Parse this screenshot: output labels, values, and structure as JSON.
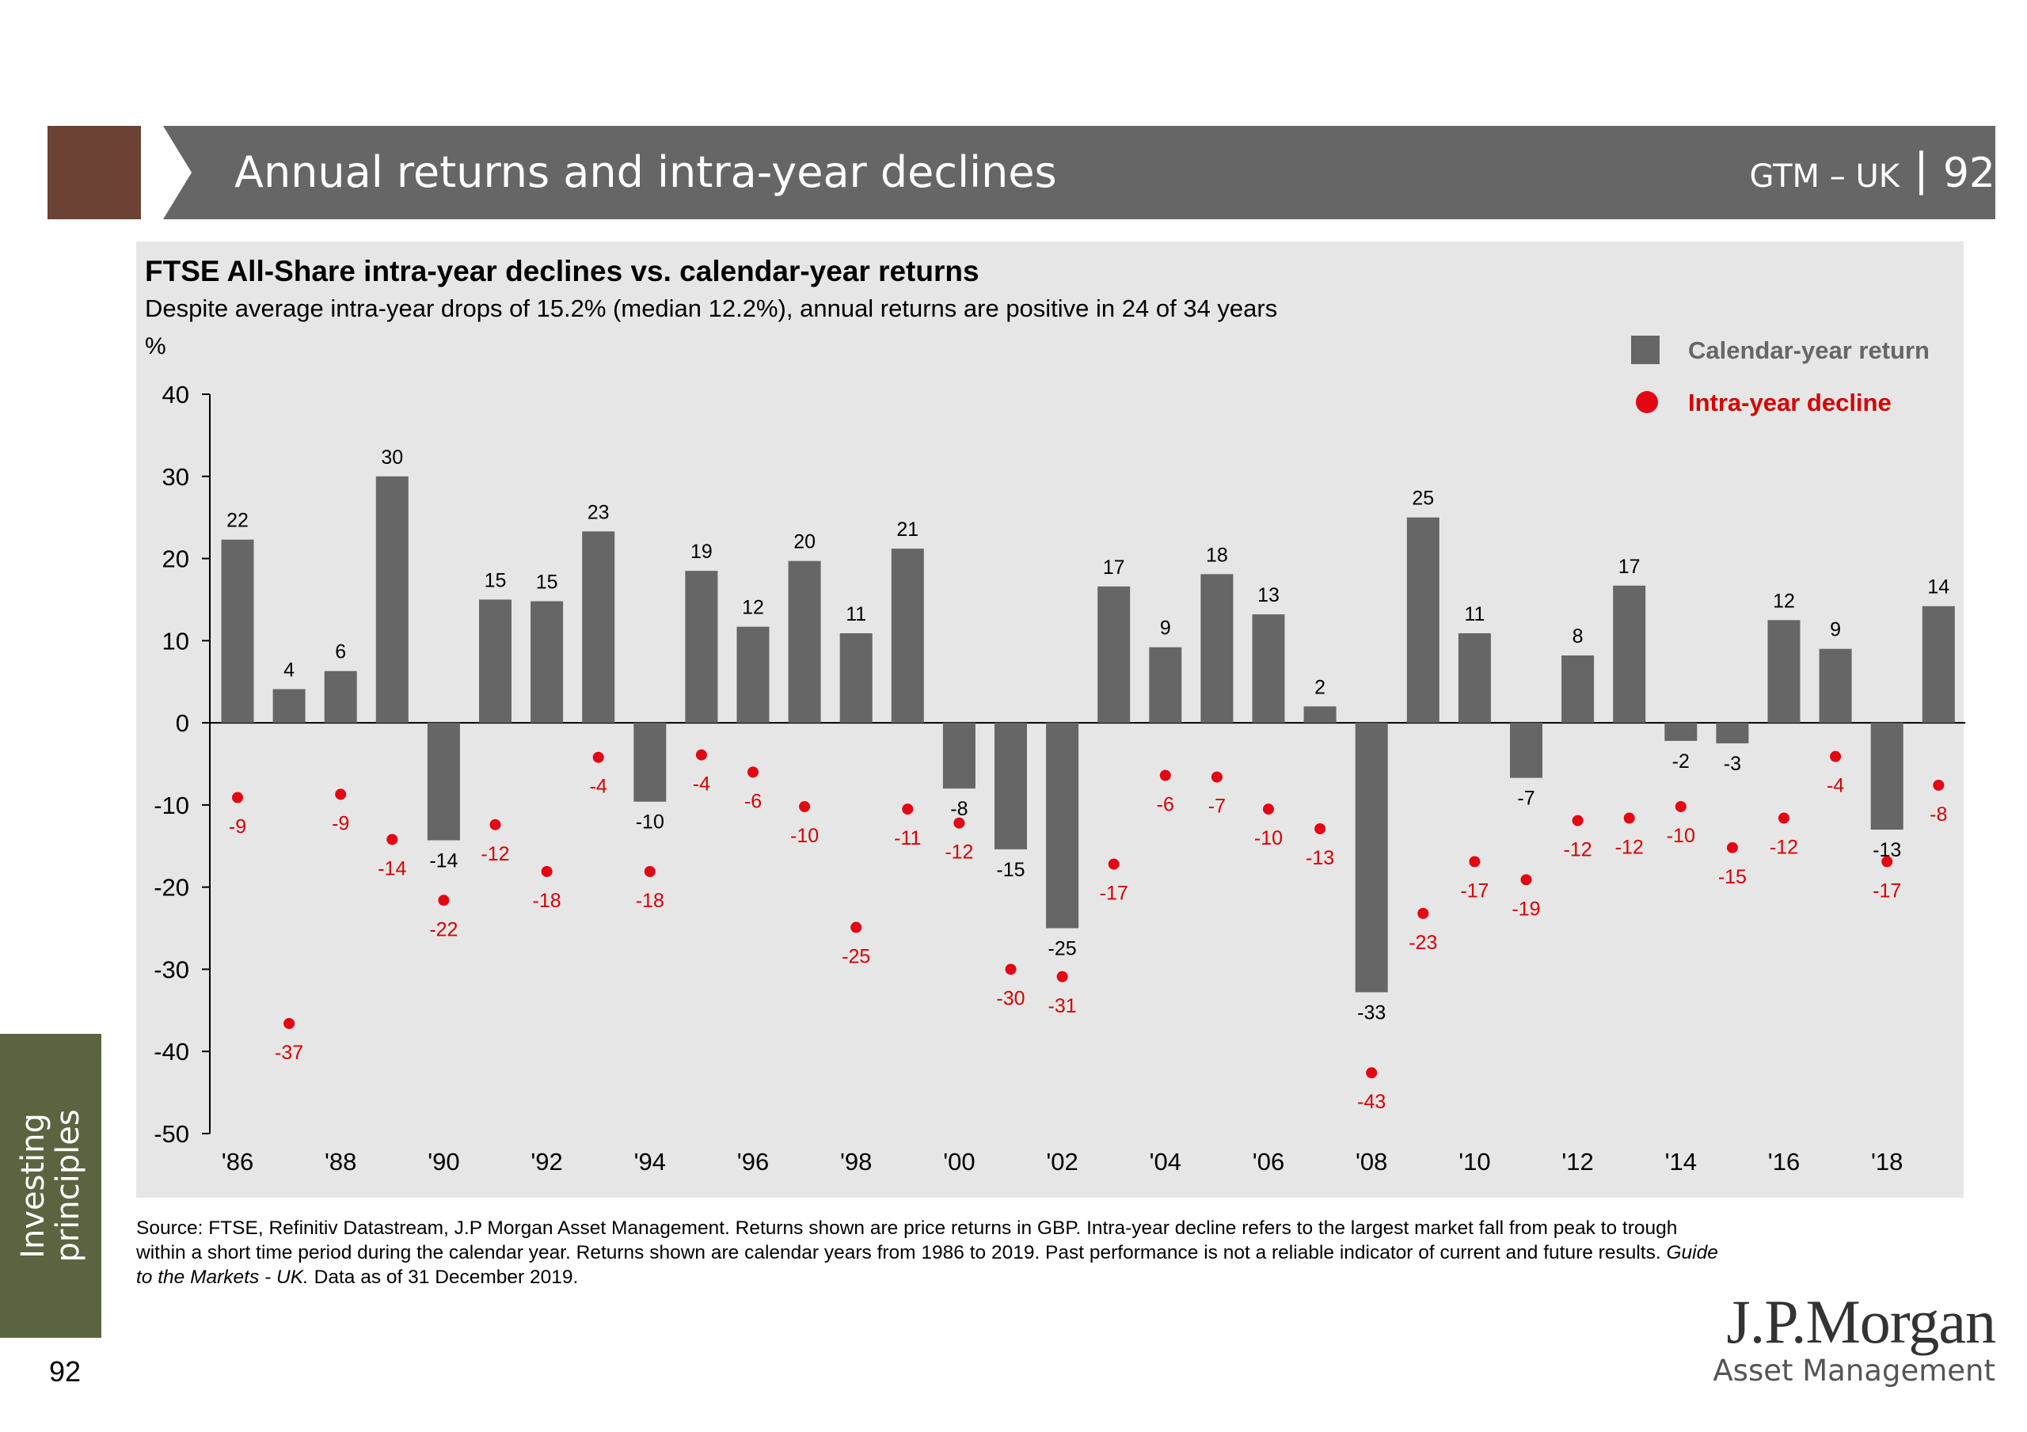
{
  "header": {
    "title": "Annual returns and intra-year declines",
    "deck_code": "GTM – UK",
    "page": "92"
  },
  "chart_data": {
    "type": "bar",
    "title": "FTSE All-Share intra-year declines vs. calendar-year returns",
    "subtitle": "Despite average intra-year drops of 15.2% (median 12.2%), annual returns are positive in 24 of 34 years",
    "unit_label": "%",
    "ylim": [
      -50,
      40
    ],
    "yticks": [
      40,
      30,
      20,
      10,
      0,
      -10,
      -20,
      -30,
      -40,
      -50
    ],
    "years": [
      1986,
      1987,
      1988,
      1989,
      1990,
      1991,
      1992,
      1993,
      1994,
      1995,
      1996,
      1997,
      1998,
      1999,
      2000,
      2001,
      2002,
      2003,
      2004,
      2005,
      2006,
      2007,
      2008,
      2009,
      2010,
      2011,
      2012,
      2013,
      2014,
      2015,
      2016,
      2017,
      2018,
      2019
    ],
    "x_tick_labels": [
      "'86",
      "'88",
      "'90",
      "'92",
      "'94",
      "'96",
      "'98",
      "'00",
      "'02",
      "'04",
      "'06",
      "'08",
      "'10",
      "'12",
      "'14",
      "'16",
      "'18"
    ],
    "legend_position": "top-right",
    "series": [
      {
        "name": "Calendar-year return",
        "kind": "bar",
        "color": "#666666",
        "values": [
          22,
          4,
          6,
          30,
          -14,
          15,
          15,
          23,
          -10,
          19,
          12,
          20,
          11,
          21,
          -8,
          -15,
          -25,
          17,
          9,
          18,
          13,
          2,
          -33,
          25,
          11,
          -7,
          8,
          17,
          -2,
          -3,
          12,
          9,
          -13,
          14
        ],
        "plotted": [
          22.3,
          4.1,
          6.3,
          30.0,
          -14.3,
          15.0,
          14.8,
          23.3,
          -9.6,
          18.5,
          11.7,
          19.7,
          10.9,
          21.2,
          -8.0,
          -15.4,
          -25.0,
          16.6,
          9.2,
          18.1,
          13.2,
          2.0,
          -32.8,
          25.0,
          10.9,
          -6.7,
          8.2,
          16.7,
          -2.2,
          -2.5,
          12.5,
          9.0,
          -13.0,
          14.2
        ]
      },
      {
        "name": "Intra-year decline",
        "kind": "dot",
        "color": "#e30613",
        "values": [
          -9,
          -37,
          -9,
          -14,
          -22,
          -12,
          -18,
          -4,
          -18,
          -4,
          -6,
          -10,
          -25,
          -11,
          -12,
          -30,
          -31,
          -17,
          -6,
          -7,
          -10,
          -13,
          -43,
          -23,
          -17,
          -19,
          -12,
          -12,
          -10,
          -15,
          -12,
          -4,
          -17,
          -8
        ],
        "plotted": [
          -9.1,
          -36.6,
          -8.7,
          -14.2,
          -21.6,
          -12.4,
          -18.1,
          -4.2,
          -18.1,
          -3.9,
          -6.0,
          -10.2,
          -24.9,
          -10.5,
          -12.2,
          -30.0,
          -30.9,
          -17.2,
          -6.4,
          -6.6,
          -10.5,
          -12.9,
          -42.6,
          -23.2,
          -16.9,
          -19.1,
          -11.9,
          -11.6,
          -10.2,
          -15.2,
          -11.6,
          -4.1,
          -16.9,
          -7.6
        ]
      }
    ]
  },
  "source_note": {
    "text": "Source: FTSE, Refinitiv Datastream, J.P Morgan Asset Management. Returns shown are price returns in GBP. Intra-year decline refers to the largest market fall from peak to trough within a short time period during the calendar year. Returns shown are calendar years from 1986 to 2019. Past performance is not a reliable indicator of current and future results. ",
    "italic": "Guide to the Markets - UK.",
    "tail": " Data as of 31 December 2019."
  },
  "side_tab": {
    "line1": "Investing",
    "line2": "principles",
    "color": "#5b6440"
  },
  "page_number": "92",
  "logo": {
    "name": "J.P.Morgan",
    "sub": "Asset Management"
  },
  "colors": {
    "header_bar": "#666666",
    "header_accent": "#6b4233",
    "panel": "#e6e6e6"
  }
}
